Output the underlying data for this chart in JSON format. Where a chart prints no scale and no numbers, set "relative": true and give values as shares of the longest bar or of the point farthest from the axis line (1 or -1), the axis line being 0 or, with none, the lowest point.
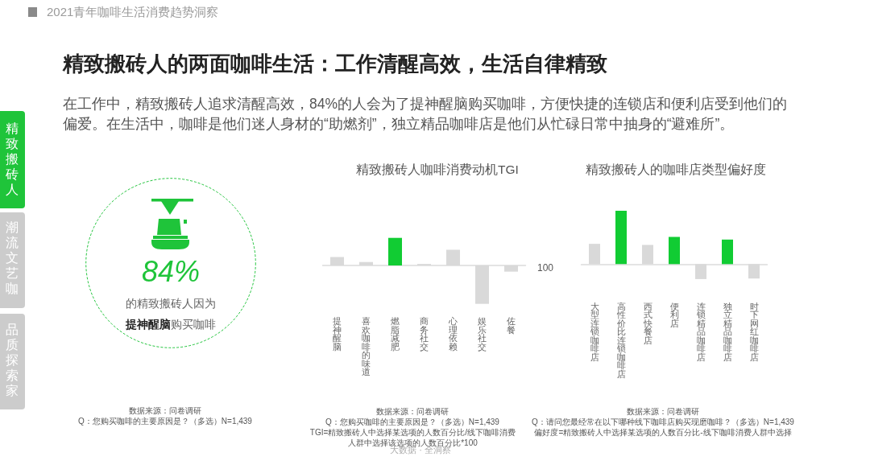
{
  "chart_data": [
    {
      "type": "other",
      "title": "精致搬砖人的两面咖啡生活：工作清醒高效，生活自律精致",
      "subtitle": "在工作中，精致搬砖人追求清醒高效，84%的人会为了提神醒脑购买咖啡，方便快捷的连锁店和便利店受到他们的偏爱。在生活中，咖啡是他们迷人身材的“助燃剂”，独立精品咖啡店是他们从忙碌日常中抽身的“避难所”。",
      "annotations": [
        "2021青年咖啡生活消费趋势洞察",
        "精致搬砖人",
        "潮流文艺咖",
        "品质探索家",
        "84%",
        "的精致搬砖人因为",
        "提神醒脑",
        "购买咖啡",
        "数据来源：问卷调研",
        "Q：您购买咖啡的主要原因是？（多选）N=1,439",
        "大数据 · 全洞察"
      ]
    },
    {
      "type": "bar",
      "title": "精致搬砖人咖啡消费动机TGI",
      "categories": [
        "提神醒脑",
        "喜欢咖啡的味道",
        "燃脂减肥",
        "商务社交",
        "心理依赖",
        "娱乐社交",
        "佐餐"
      ],
      "values": [
        0.22,
        0.09,
        0.72,
        0.04,
        0.41,
        -1,
        -0.16
      ],
      "colors": [
        "#d9d9d9",
        "#d9d9d9",
        "#11cc33",
        "#d9d9d9",
        "#d9d9d9",
        "#d9d9d9",
        "#d9d9d9"
      ],
      "relative": true,
      "annotations": [
        "100",
        "数据来源：问卷调研",
        "Q：您购买咖啡的主要原因是？（多选）N=1,439",
        "TGI=精致搬砖人中选择某选项的人数百分比/线下咖啡消费人群中选择该选项的人数百分比*100"
      ]
    },
    {
      "type": "bar",
      "title": "精致搬砖人的咖啡店类型偏好度",
      "categories": [
        "大型连锁咖啡店",
        "高性价比连锁咖啡店",
        "西式快餐店",
        "便利店",
        "连锁精品咖啡店",
        "独立精品咖啡店",
        "时下网红咖啡店"
      ],
      "values": [
        0.38,
        1,
        0.36,
        0.51,
        -0.28,
        0.46,
        -0.27
      ],
      "colors": [
        "#d9d9d9",
        "#11cc33",
        "#d9d9d9",
        "#11cc33",
        "#d9d9d9",
        "#11cc33",
        "#d9d9d9"
      ],
      "relative": true,
      "annotations": [
        "数据来源：问卷调研",
        "Q：请问您最经常在以下哪种线下咖啡店购买现磨咖啡？（多选）N=1,439",
        "偏好度=精致搬砖人中选择某选项的人数百分比-线下咖啡消费人群中选择"
      ]
    }
  ]
}
